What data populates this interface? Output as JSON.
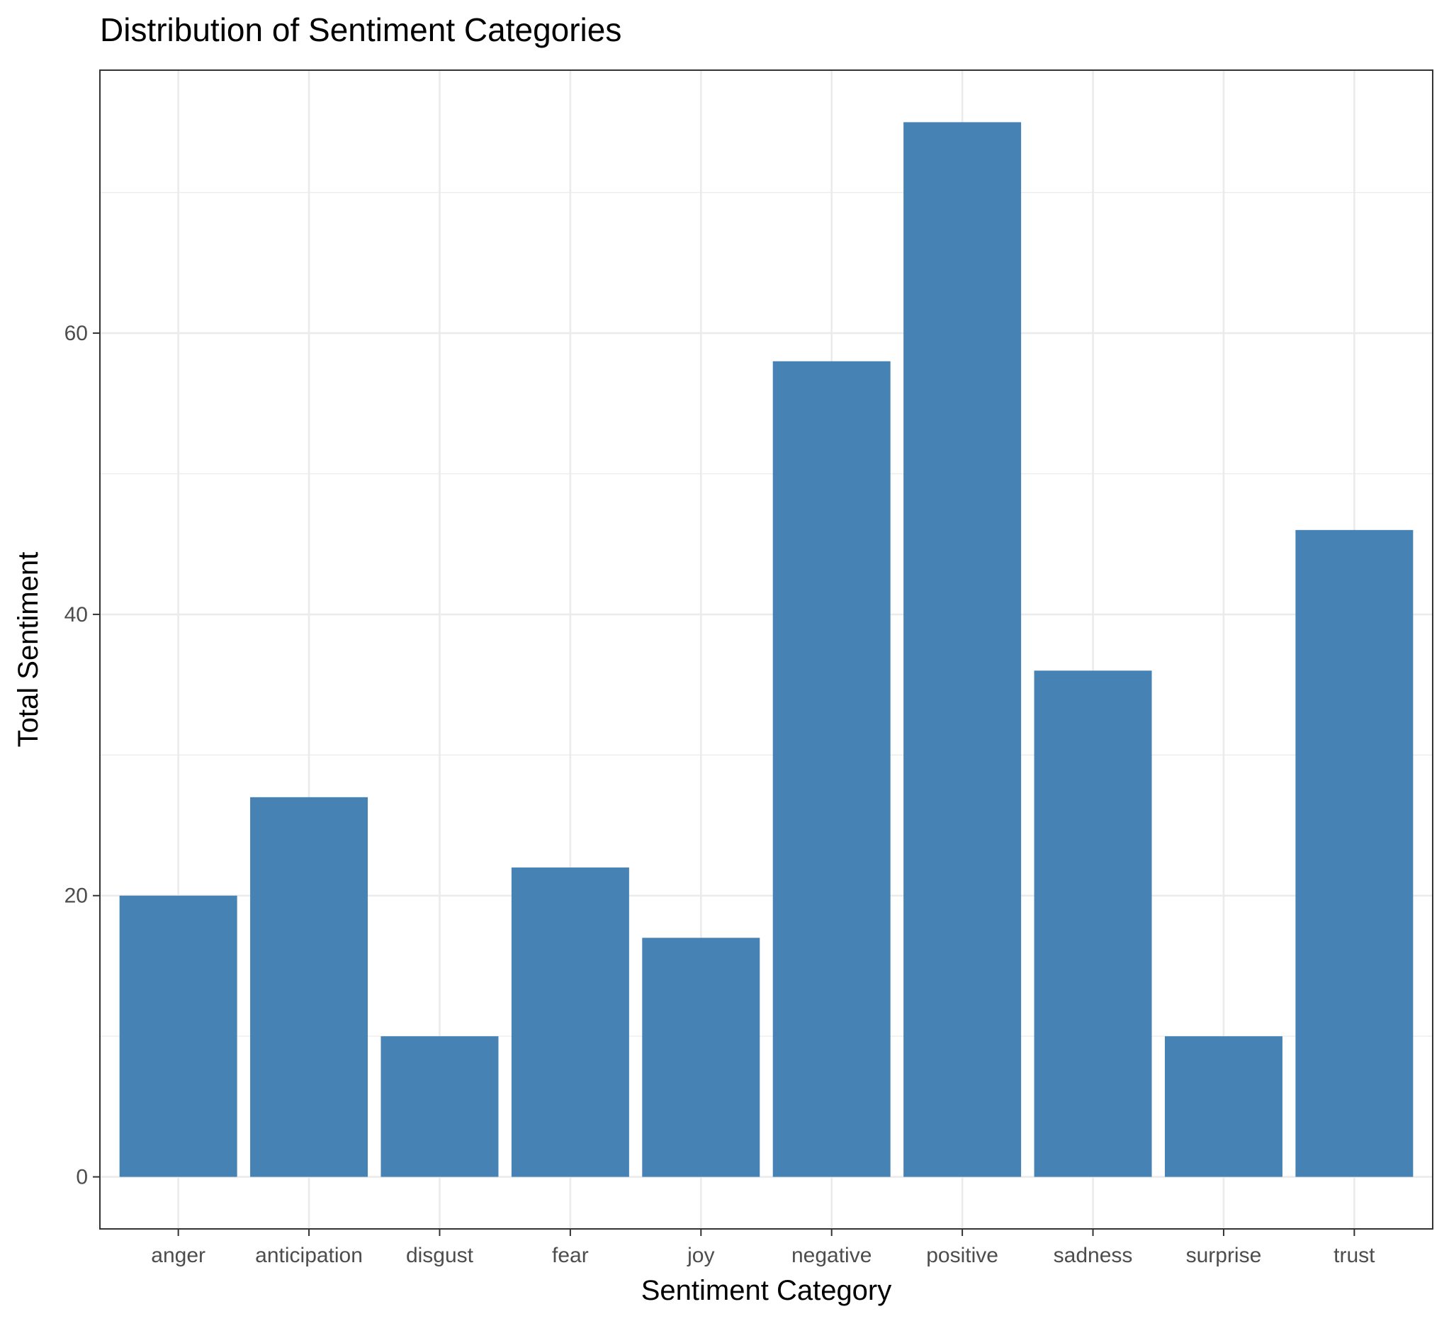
{
  "chart_data": {
    "type": "bar",
    "title": "Distribution of Sentiment Categories",
    "xlabel": "Sentiment Category",
    "ylabel": "Total Sentiment",
    "categories": [
      "anger",
      "anticipation",
      "disgust",
      "fear",
      "joy",
      "negative",
      "positive",
      "sadness",
      "surprise",
      "trust"
    ],
    "values": [
      20,
      27,
      10,
      22,
      17,
      58,
      75,
      36,
      10,
      46
    ],
    "ylim": [
      -3.7,
      78.7
    ],
    "yticks": [
      0,
      20,
      40,
      60
    ],
    "ytick_labels": [
      "0",
      "20",
      "40",
      "60"
    ],
    "minor_yticks": [
      10,
      30,
      50,
      70
    ],
    "grid": true,
    "bar_color": "#4682B4",
    "grid_color": "#EBEBEB",
    "panel_border_color": "#333333"
  }
}
